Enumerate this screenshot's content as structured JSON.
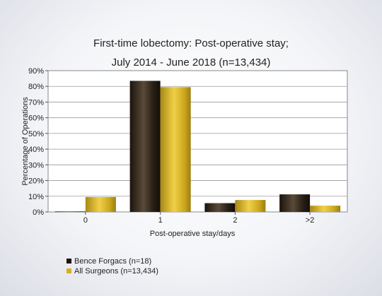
{
  "chart_data": {
    "type": "bar",
    "title": [
      "First-time lobectomy: Post-operative stay;",
      "July 2014 - June 2018 (n=13,434)"
    ],
    "xlabel": "Post-operative stay/days",
    "ylabel": "Percentage of Operations",
    "categories": [
      "0",
      "1",
      "2",
      ">2"
    ],
    "ylim": [
      0,
      90
    ],
    "yticks": [
      "0%",
      "10%",
      "20%",
      "30%",
      "40%",
      "50%",
      "60%",
      "70%",
      "80%",
      "90%"
    ],
    "grid": "horizontal",
    "legend_position": "bottom-left",
    "series": [
      {
        "name": "Bence Forgacs (n=18)",
        "values": [
          0.3,
          83.5,
          5.6,
          11.2
        ],
        "color": "#2b2015"
      },
      {
        "name": "All Surgeons (n=13,434)",
        "values": [
          9.5,
          79.5,
          7.6,
          4.0
        ],
        "color": "#c9a318"
      }
    ]
  }
}
